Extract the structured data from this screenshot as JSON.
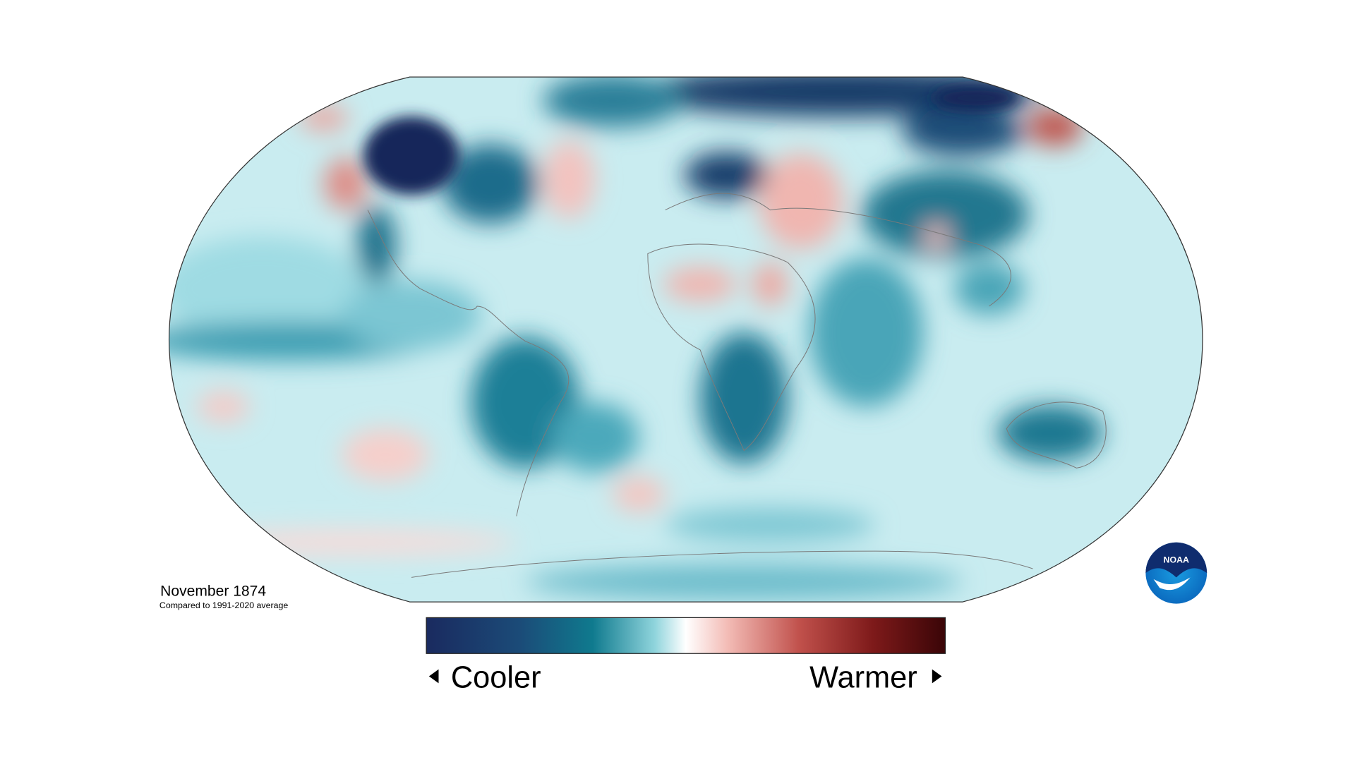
{
  "map": {
    "title": "November 1874",
    "subtitle": "Compared to 1991-2020 average",
    "legend": {
      "low_label": "Cooler",
      "high_label": "Warmer"
    },
    "logo": "NOAA"
  }
}
